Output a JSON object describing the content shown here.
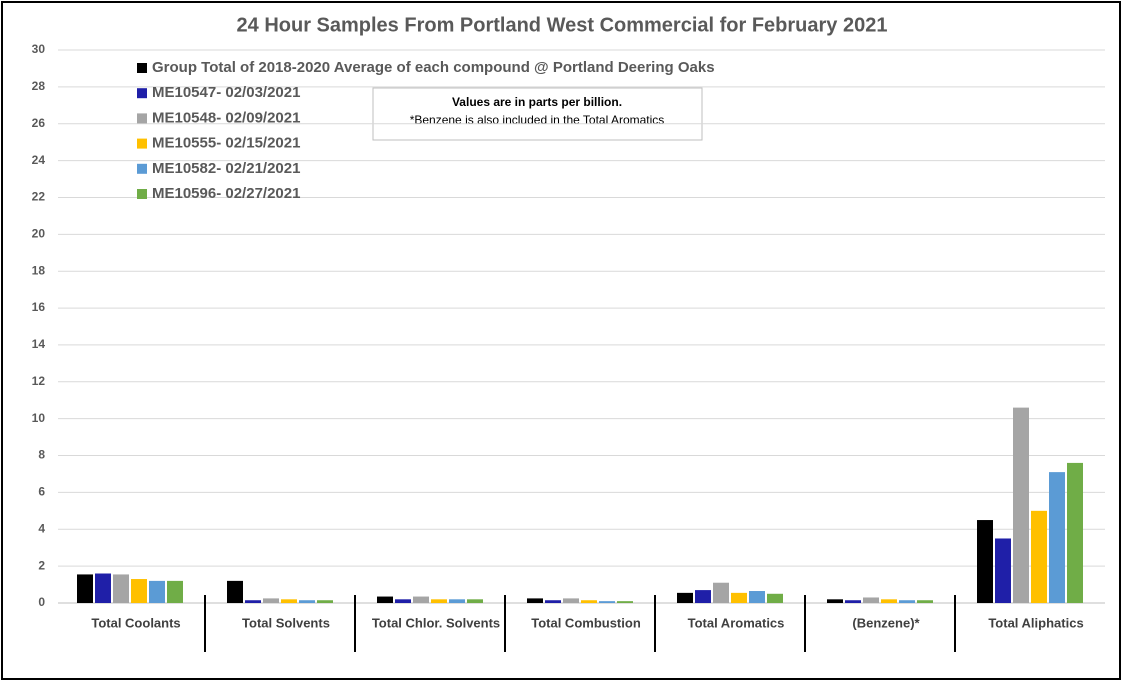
{
  "chart_data": {
    "type": "bar",
    "title": "24 Hour Samples From Portland West Commercial for February 2021",
    "annotations": [
      "Values are in parts per billion.",
      "*Benzene is also included in the Total Aromatics"
    ],
    "categories": [
      "Total Coolants",
      "Total Solvents",
      "Total Chlor. Solvents",
      "Total Combustion",
      "Total Aromatics",
      "(Benzene)*",
      "Total Aliphatics"
    ],
    "series": [
      {
        "name": "Group Total of 2018-2020 Average of each compound @ Portland Deering Oaks",
        "color": "#000000",
        "values": [
          1.55,
          1.2,
          0.35,
          0.25,
          0.55,
          0.2,
          4.5
        ]
      },
      {
        "name": "ME10547- 02/03/2021",
        "color": "#1f1fa8",
        "values": [
          1.6,
          0.15,
          0.2,
          0.15,
          0.7,
          0.15,
          3.5
        ]
      },
      {
        "name": "ME10548- 02/09/2021",
        "color": "#a5a5a5",
        "values": [
          1.55,
          0.25,
          0.35,
          0.25,
          1.1,
          0.3,
          10.6
        ]
      },
      {
        "name": "ME10555- 02/15/2021",
        "color": "#ffc000",
        "values": [
          1.3,
          0.2,
          0.2,
          0.15,
          0.55,
          0.2,
          5.0
        ]
      },
      {
        "name": "ME10582- 02/21/2021",
        "color": "#5b9bd5",
        "values": [
          1.2,
          0.15,
          0.2,
          0.1,
          0.65,
          0.15,
          7.1
        ]
      },
      {
        "name": "ME10596- 02/27/2021",
        "color": "#70ad47",
        "values": [
          1.2,
          0.15,
          0.2,
          0.1,
          0.5,
          0.15,
          7.6
        ]
      }
    ],
    "ylim": [
      0,
      30
    ],
    "yticks": [
      0,
      2,
      4,
      6,
      8,
      10,
      12,
      14,
      16,
      18,
      20,
      22,
      24,
      26,
      28,
      30
    ],
    "grid": true
  }
}
